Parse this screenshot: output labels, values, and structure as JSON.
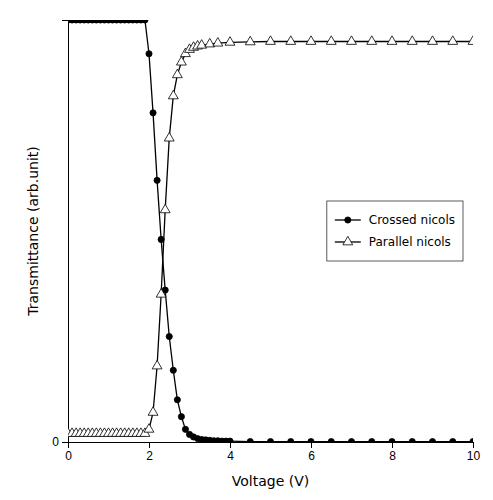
{
  "chart_data": {
    "type": "line",
    "xlabel": "Voltage (V)",
    "ylabel": "Transmittance (arb.unit)",
    "xlim": [
      0,
      10
    ],
    "ylim": [
      0,
      1.0
    ],
    "xticks": [
      0,
      2,
      4,
      6,
      8,
      10
    ],
    "yticks": [
      0
    ],
    "grid": false,
    "legend": "right",
    "series": [
      {
        "name": "Crossed nicols",
        "color": "black",
        "marker": "circle",
        "x": [
          0.0,
          0.1,
          0.2,
          0.3,
          0.4,
          0.5,
          0.6,
          0.7,
          0.8,
          0.9,
          1.0,
          1.1,
          1.2,
          1.3,
          1.4,
          1.5,
          1.6,
          1.7,
          1.8,
          1.9,
          2.0,
          2.1,
          2.2,
          2.3,
          2.4,
          2.5,
          2.6,
          2.7,
          2.8,
          2.9,
          3.0,
          3.1,
          3.2,
          3.3,
          3.4,
          3.5,
          3.6,
          3.7,
          3.8,
          3.9,
          4.0,
          4.5,
          5.0,
          5.5,
          6.0,
          6.5,
          7.0,
          7.5,
          8.0,
          8.5,
          9.0,
          9.5,
          10.0
        ],
        "values": [
          1.0,
          1.0,
          1.0,
          1.0,
          1.0,
          1.0,
          1.0,
          1.0,
          1.0,
          1.0,
          1.0,
          1.0,
          1.0,
          1.0,
          1.0,
          1.0,
          1.0,
          1.0,
          1.0,
          1.0,
          0.92,
          0.78,
          0.62,
          0.48,
          0.36,
          0.25,
          0.17,
          0.1,
          0.06,
          0.03,
          0.018,
          0.012,
          0.008,
          0.006,
          0.005,
          0.004,
          0.003,
          0.003,
          0.002,
          0.002,
          0.002,
          0.001,
          0.001,
          0.001,
          0.001,
          0.001,
          0.001,
          0.001,
          0.001,
          0.001,
          0.001,
          0.001,
          0.001
        ]
      },
      {
        "name": "Parallel nicols",
        "color": "black",
        "marker": "triangle-open",
        "x": [
          0.0,
          0.1,
          0.2,
          0.3,
          0.4,
          0.5,
          0.6,
          0.7,
          0.8,
          0.9,
          1.0,
          1.1,
          1.2,
          1.3,
          1.4,
          1.5,
          1.6,
          1.7,
          1.8,
          1.9,
          2.0,
          2.1,
          2.2,
          2.3,
          2.4,
          2.5,
          2.6,
          2.7,
          2.8,
          2.9,
          3.0,
          3.1,
          3.2,
          3.3,
          3.5,
          3.7,
          4.0,
          4.5,
          5.0,
          5.5,
          6.0,
          6.5,
          7.0,
          7.5,
          8.0,
          8.5,
          9.0,
          9.5,
          10.0
        ],
        "values": [
          0.02,
          0.02,
          0.02,
          0.02,
          0.02,
          0.02,
          0.02,
          0.02,
          0.02,
          0.02,
          0.02,
          0.02,
          0.02,
          0.02,
          0.02,
          0.02,
          0.02,
          0.02,
          0.02,
          0.02,
          0.03,
          0.07,
          0.18,
          0.35,
          0.55,
          0.72,
          0.82,
          0.87,
          0.9,
          0.92,
          0.93,
          0.935,
          0.938,
          0.94,
          0.943,
          0.945,
          0.947,
          0.948,
          0.949,
          0.949,
          0.949,
          0.949,
          0.949,
          0.949,
          0.949,
          0.949,
          0.949,
          0.949,
          0.949
        ]
      }
    ]
  }
}
